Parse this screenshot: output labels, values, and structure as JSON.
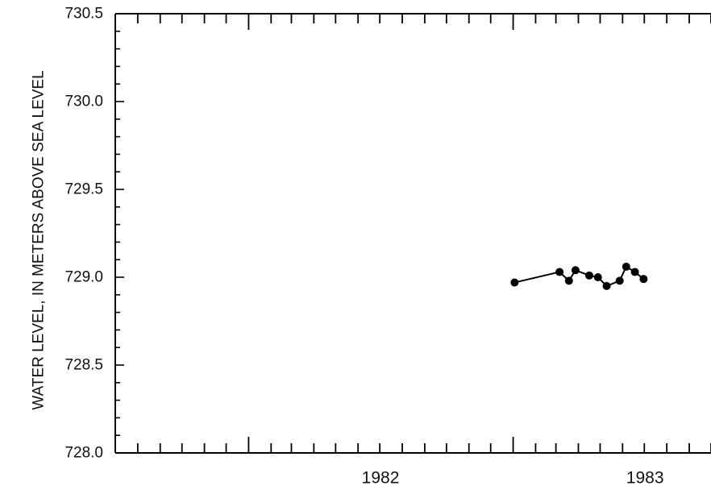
{
  "chart_data": {
    "type": "line",
    "title": "",
    "ylabel": "WATER LEVEL, IN METERS ABOVE SEA LEVEL",
    "xlabel": "",
    "ylim": [
      728.0,
      730.5
    ],
    "xlim": [
      "1981-07-01",
      "1983-10-01"
    ],
    "y_ticks": [
      "728.0",
      "728.5",
      "729.0",
      "729.5",
      "730.0",
      "730.5"
    ],
    "x_tick_labels": [
      {
        "label": "1982",
        "date": "1982-01-01"
      },
      {
        "label": "1983",
        "date": "1983-01-01"
      }
    ],
    "grid": false,
    "series": [
      {
        "color": "#000000",
        "x": [
          "1983-01-03",
          "1983-03-06",
          "1983-03-19",
          "1983-03-28",
          "1983-04-16",
          "1983-04-28",
          "1983-05-10",
          "1983-05-28",
          "1983-06-06",
          "1983-06-18",
          "1983-06-30"
        ],
        "y": [
          728.97,
          729.03,
          728.98,
          729.04,
          729.01,
          729.0,
          728.95,
          728.98,
          729.06,
          729.03,
          728.99
        ]
      }
    ]
  }
}
